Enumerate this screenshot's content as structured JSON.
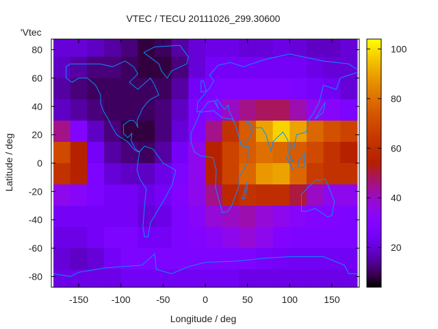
{
  "chart_data": {
    "type": "heatmap",
    "title": "VTEC / TECU 20111026_299.30600",
    "xlabel": "Longitude / deg",
    "ylabel": "Latitude / deg",
    "legend_entry": "'Vtec",
    "legend_placement": "top-left",
    "xlim": [
      -182.5,
      182.5
    ],
    "ylim": [
      -87.5,
      87.5
    ],
    "xticks": [
      -150,
      -100,
      -50,
      0,
      50,
      100,
      150
    ],
    "yticks": [
      -80,
      -60,
      -40,
      -20,
      0,
      20,
      40,
      60,
      80
    ],
    "colorbar": {
      "range": [
        4,
        104
      ],
      "ticks": [
        20,
        40,
        60,
        80,
        100
      ],
      "palette": "black-purple-red-yellow"
    },
    "coastline_color": "#0a8cff",
    "grid_lon": [
      -170,
      -150,
      -130,
      -110,
      -90,
      -70,
      -50,
      -30,
      -10,
      10,
      30,
      50,
      70,
      90,
      110,
      130,
      150,
      170
    ],
    "grid_lat": [
      82.5,
      67.5,
      52.5,
      37.5,
      22.5,
      7.5,
      -7.5,
      -22.5,
      -37.5,
      -52.5,
      -67.5,
      -82.5
    ],
    "values": [
      [
        20,
        20,
        18,
        15,
        12,
        8,
        10,
        15,
        20,
        22,
        22,
        20,
        20,
        22,
        20,
        18,
        18,
        20
      ],
      [
        18,
        15,
        12,
        12,
        10,
        8,
        8,
        12,
        20,
        25,
        25,
        25,
        25,
        25,
        25,
        22,
        20,
        20
      ],
      [
        15,
        12,
        10,
        10,
        10,
        10,
        10,
        15,
        25,
        28,
        30,
        30,
        30,
        30,
        28,
        26,
        24,
        20
      ],
      [
        18,
        15,
        12,
        10,
        10,
        10,
        12,
        18,
        28,
        32,
        40,
        45,
        48,
        48,
        42,
        35,
        32,
        28
      ],
      [
        45,
        30,
        18,
        12,
        8,
        8,
        12,
        20,
        30,
        45,
        62,
        75,
        90,
        98,
        90,
        78,
        72,
        68
      ],
      [
        70,
        55,
        25,
        15,
        12,
        10,
        15,
        25,
        35,
        55,
        68,
        75,
        80,
        78,
        75,
        70,
        62,
        55
      ],
      [
        62,
        55,
        28,
        20,
        18,
        18,
        22,
        28,
        35,
        55,
        68,
        78,
        88,
        90,
        78,
        65,
        62,
        62
      ],
      [
        35,
        32,
        28,
        25,
        25,
        22,
        25,
        30,
        35,
        45,
        58,
        62,
        60,
        60,
        50,
        40,
        35,
        35
      ],
      [
        25,
        25,
        25,
        25,
        25,
        20,
        22,
        28,
        32,
        38,
        40,
        42,
        38,
        35,
        32,
        30,
        30,
        28
      ],
      [
        22,
        22,
        25,
        28,
        28,
        25,
        25,
        28,
        30,
        32,
        35,
        38,
        35,
        30,
        28,
        28,
        28,
        28
      ],
      [
        20,
        18,
        20,
        25,
        28,
        28,
        28,
        28,
        28,
        28,
        28,
        28,
        26,
        25,
        24,
        24,
        24,
        24
      ],
      [
        22,
        22,
        22,
        22,
        24,
        24,
        24,
        24,
        24,
        24,
        24,
        22,
        22,
        22,
        22,
        22,
        22,
        22
      ]
    ]
  }
}
